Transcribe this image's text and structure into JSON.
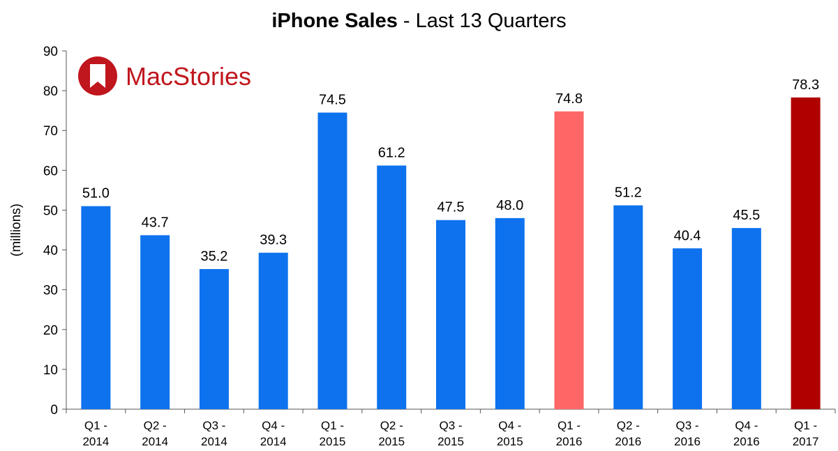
{
  "chart_data": {
    "type": "bar",
    "title_bold": "iPhone Sales",
    "title_rest": " - Last 13 Quarters",
    "xlabel": "",
    "ylabel": "(millions)",
    "ylim": [
      0,
      90
    ],
    "yticks": [
      0,
      10,
      20,
      30,
      40,
      50,
      60,
      70,
      80,
      90
    ],
    "categories": [
      [
        "Q1 -",
        "2014"
      ],
      [
        "Q2 -",
        "2014"
      ],
      [
        "Q3 -",
        "2014"
      ],
      [
        "Q4 -",
        "2014"
      ],
      [
        "Q1 -",
        "2015"
      ],
      [
        "Q2 -",
        "2015"
      ],
      [
        "Q3 -",
        "2015"
      ],
      [
        "Q4 -",
        "2015"
      ],
      [
        "Q1 -",
        "2016"
      ],
      [
        "Q2 -",
        "2016"
      ],
      [
        "Q3 -",
        "2016"
      ],
      [
        "Q4 -",
        "2016"
      ],
      [
        "Q1 -",
        "2017"
      ]
    ],
    "values": [
      51.0,
      43.7,
      35.2,
      39.3,
      74.5,
      61.2,
      47.5,
      48.0,
      74.8,
      51.2,
      40.4,
      45.5,
      78.3
    ],
    "value_labels": [
      "51.0",
      "43.7",
      "35.2",
      "39.3",
      "74.5",
      "61.2",
      "47.5",
      "48.0",
      "74.8",
      "51.2",
      "40.4",
      "45.5",
      "78.3"
    ],
    "colors": [
      "#0e72ee",
      "#0e72ee",
      "#0e72ee",
      "#0e72ee",
      "#0e72ee",
      "#0e72ee",
      "#0e72ee",
      "#0e72ee",
      "#ff6666",
      "#0e72ee",
      "#0e72ee",
      "#0e72ee",
      "#b00000"
    ],
    "grid": false,
    "legend": "none"
  },
  "logo": {
    "text": "MacStories",
    "color": "#c0161d"
  }
}
